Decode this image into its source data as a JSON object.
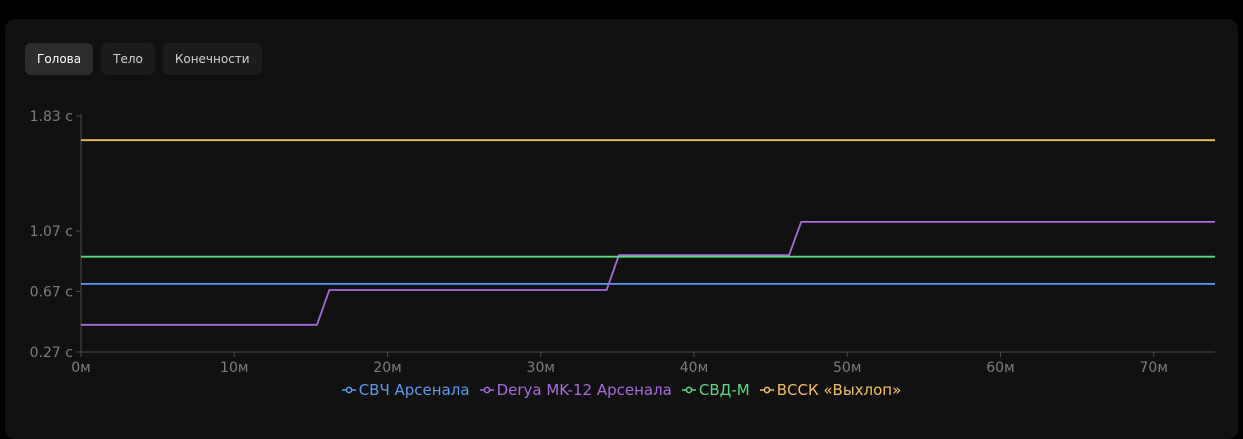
{
  "tabs": [
    {
      "label": "Голова",
      "active": true
    },
    {
      "label": "Тело",
      "active": false
    },
    {
      "label": "Конечности",
      "active": false
    }
  ],
  "chart_data": {
    "type": "line",
    "step": true,
    "grid": false,
    "legend_position": "bottom",
    "x_unit": "м",
    "y_unit": "с",
    "xlim": [
      0,
      74
    ],
    "ylim": [
      0.27,
      1.83
    ],
    "x_ticks": [
      "0м",
      "10м",
      "20м",
      "30м",
      "40м",
      "50м",
      "60м",
      "70м"
    ],
    "y_ticks": [
      "1.83 с",
      "1.07 с",
      "0.67 с",
      "0.27 с"
    ],
    "series": [
      {
        "name": "СВЧ Арсенала",
        "color": "#5b9bf0",
        "x": [
          0,
          74
        ],
        "y": [
          0.72,
          0.72
        ]
      },
      {
        "name": "Derya MK-12 Арсенала",
        "color": "#a86ae0",
        "x": [
          0,
          15.4,
          16.2,
          34.3,
          35.1,
          46.2,
          47.0,
          74
        ],
        "y": [
          0.45,
          0.45,
          0.68,
          0.68,
          0.91,
          0.91,
          1.13,
          1.13
        ]
      },
      {
        "name": "СВД-М",
        "color": "#5cd684",
        "x": [
          0,
          74
        ],
        "y": [
          0.9,
          0.9
        ]
      },
      {
        "name": "ВССК «Выхлоп»",
        "color": "#f2bf5e",
        "x": [
          0,
          74
        ],
        "y": [
          1.67,
          1.67
        ]
      }
    ]
  }
}
